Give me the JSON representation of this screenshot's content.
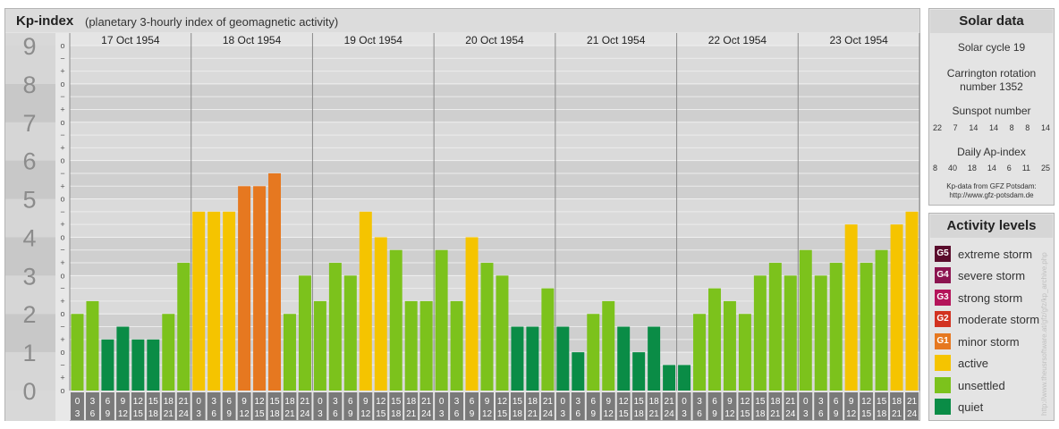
{
  "header": {
    "title": "Kp-index",
    "subtitle": "(planetary 3-hourly index of geomagnetic activity)"
  },
  "chart_data": {
    "type": "bar",
    "ylim": [
      0,
      9
    ],
    "y_ticks": [
      "0",
      "1",
      "2",
      "3",
      "4",
      "5",
      "6",
      "7",
      "8",
      "9"
    ],
    "y_minor_ticks": [
      "o",
      "+",
      "−",
      "o",
      "+",
      "−",
      "o",
      "+",
      "−",
      "o",
      "+",
      "−",
      "o",
      "+",
      "−",
      "o",
      "+",
      "−",
      "o",
      "+",
      "−",
      "o",
      "+",
      "−",
      "o",
      "+",
      "−",
      "o"
    ],
    "days": [
      "17 Oct 1954",
      "18 Oct 1954",
      "19 Oct 1954",
      "20 Oct 1954",
      "21 Oct 1954",
      "22 Oct 1954",
      "23 Oct 1954"
    ],
    "hour_start": [
      "0",
      "3",
      "6",
      "9",
      "12",
      "15",
      "18",
      "21"
    ],
    "hour_end": [
      "3",
      "6",
      "9",
      "12",
      "15",
      "18",
      "21",
      "24"
    ],
    "values": [
      2.0,
      2.333,
      1.333,
      1.667,
      1.333,
      1.333,
      2.0,
      3.333,
      4.667,
      4.667,
      4.667,
      5.333,
      5.333,
      5.667,
      2.0,
      3.0,
      2.333,
      3.333,
      3.0,
      4.667,
      4.0,
      3.667,
      2.333,
      2.333,
      3.667,
      2.333,
      4.0,
      3.333,
      3.0,
      1.667,
      1.667,
      2.667,
      1.667,
      1.0,
      2.0,
      2.333,
      1.667,
      1.0,
      1.667,
      0.667,
      0.667,
      2.0,
      2.667,
      2.333,
      2.0,
      3.0,
      3.333,
      3.0,
      3.667,
      3.0,
      3.333,
      4.333,
      3.333,
      3.667,
      4.333,
      4.667
    ]
  },
  "solar": {
    "title": "Solar data",
    "cycle": "Solar cycle 19",
    "carrington_1": "Carrington rotation",
    "carrington_2": "number 1352",
    "sunspot_title": "Sunspot number",
    "sunspots": [
      "22",
      "7",
      "14",
      "14",
      "8",
      "8",
      "14"
    ],
    "ap_title": "Daily Ap-index",
    "ap": [
      "8",
      "40",
      "18",
      "14",
      "6",
      "11",
      "25"
    ],
    "source_1": "Kp-data from GFZ Potsdam:",
    "source_2": "http://www.gfz-potsdam.de"
  },
  "legend": {
    "title": "Activity levels",
    "items": [
      {
        "code": "G5",
        "label": "extreme storm",
        "color": "#5a0c2c"
      },
      {
        "code": "G4",
        "label": "severe storm",
        "color": "#8c1450"
      },
      {
        "code": "G3",
        "label": "strong storm",
        "color": "#b4145a"
      },
      {
        "code": "G2",
        "label": "moderate storm",
        "color": "#d23220"
      },
      {
        "code": "G1",
        "label": "minor storm",
        "color": "#e67820"
      },
      {
        "code": "",
        "label": "active",
        "color": "#f5c400"
      },
      {
        "code": "",
        "label": "unsettled",
        "color": "#7cc21c"
      },
      {
        "code": "",
        "label": "quiet",
        "color": "#0a8c46"
      }
    ]
  },
  "colors": {
    "quiet": "#0a8c46",
    "unsettled": "#7cc21c",
    "active": "#f5c400",
    "minor": "#e67820",
    "moderate": "#d23220"
  },
  "credit": "http://www.theusrsoftware.at/gfz/gfz/kp_archive.php"
}
